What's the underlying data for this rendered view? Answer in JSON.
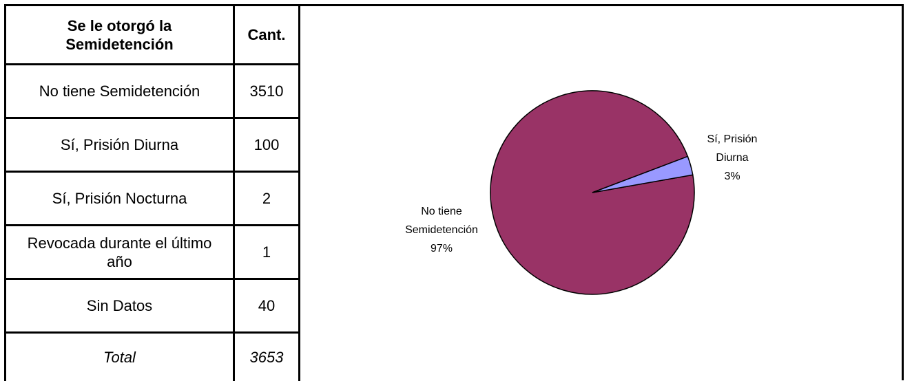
{
  "table": {
    "header": [
      "Se le otorgó la Semidetención",
      "Cant."
    ],
    "rows": [
      [
        "No tiene Semidetención",
        3510
      ],
      [
        "Sí, Prisión Diurna",
        100
      ],
      [
        "Sí, Prisión Nocturna",
        2
      ],
      [
        "Revocada durante el último año",
        1
      ],
      [
        "Sin Datos",
        40
      ]
    ],
    "total": [
      "Total",
      3653
    ]
  },
  "chart_data": {
    "type": "pie",
    "categories": [
      "No tiene Semidetención",
      "Sí, Prisión Diurna"
    ],
    "values": [
      97,
      3
    ],
    "value_labels": [
      "97%",
      "3%"
    ],
    "colors": [
      "#993366",
      "#9999ff"
    ]
  }
}
